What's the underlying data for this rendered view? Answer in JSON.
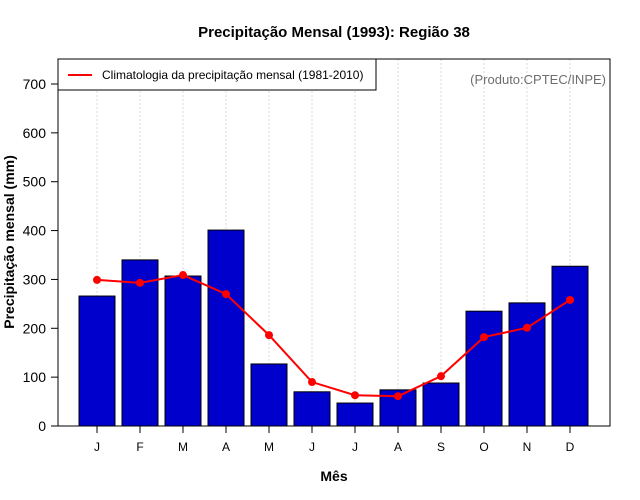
{
  "chart_data": {
    "type": "bar",
    "title": "Precipitação Mensal (1993): Região 38",
    "xlabel": "Mês",
    "ylabel": "Precipitação mensal (mm)",
    "ylim": [
      0,
      750
    ],
    "yticks": [
      0,
      100,
      200,
      300,
      400,
      500,
      600,
      700
    ],
    "categories": [
      "J",
      "F",
      "M",
      "A",
      "M",
      "J",
      "J",
      "A",
      "S",
      "O",
      "N",
      "D"
    ],
    "grid": "vertical dotted",
    "series": [
      {
        "name": "Precipitação mensal (1993)",
        "type": "bar",
        "color": "#0000cd",
        "values": [
          266,
          340,
          307,
          401,
          127,
          70,
          47,
          74,
          88,
          235,
          252,
          327
        ]
      },
      {
        "name": "Climatologia da precipitação mensal (1981-2010)",
        "type": "line",
        "color": "#ff0000",
        "values": [
          299,
          293,
          309,
          270,
          186,
          90,
          63,
          61,
          102,
          182,
          201,
          258
        ]
      }
    ],
    "legend": {
      "placement": "top-left",
      "entries": [
        "Climatologia da precipitação mensal (1981-2010)"
      ]
    },
    "annotation": "(Produto:CPTEC/INPE)"
  }
}
